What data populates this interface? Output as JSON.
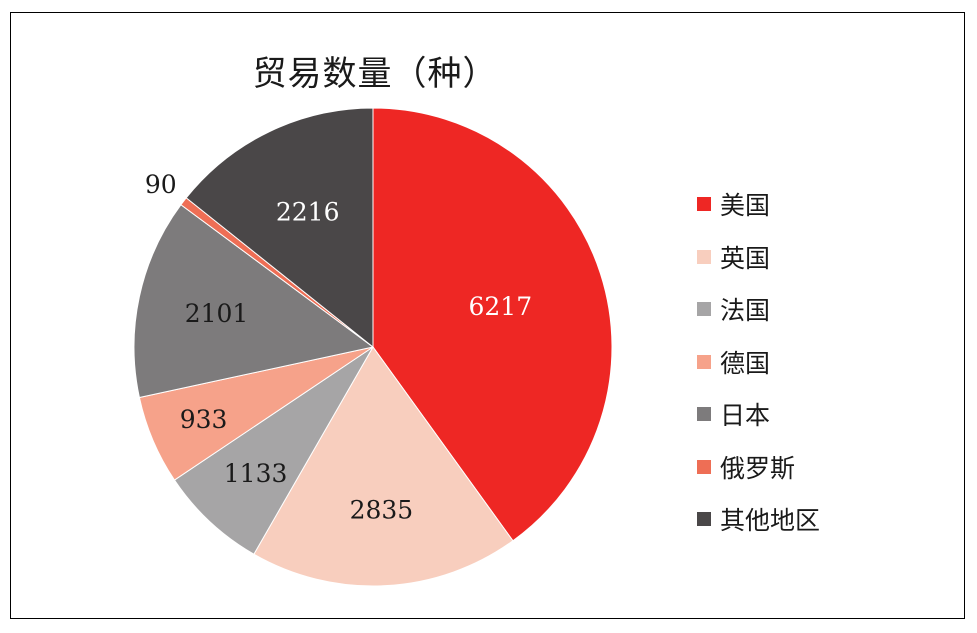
{
  "chart_data": {
    "type": "pie",
    "title": "贸易数量（种）",
    "categories": [
      "美国",
      "英国",
      "法国",
      "德国",
      "日本",
      "俄罗斯",
      "其他地区"
    ],
    "values": [
      6217,
      2835,
      1133,
      933,
      2101,
      90,
      2216
    ],
    "colors": [
      "#ee2724",
      "#f8cebe",
      "#a6a5a6",
      "#f6a28a",
      "#7d7b7c",
      "#ee6e55",
      "#4a4748"
    ],
    "label_colors": [
      "#ffffff",
      "#1a1a1a",
      "#1a1a1a",
      "#1a1a1a",
      "#1a1a1a",
      "#1a1a1a",
      "#ffffff"
    ],
    "legend_position": "right"
  }
}
